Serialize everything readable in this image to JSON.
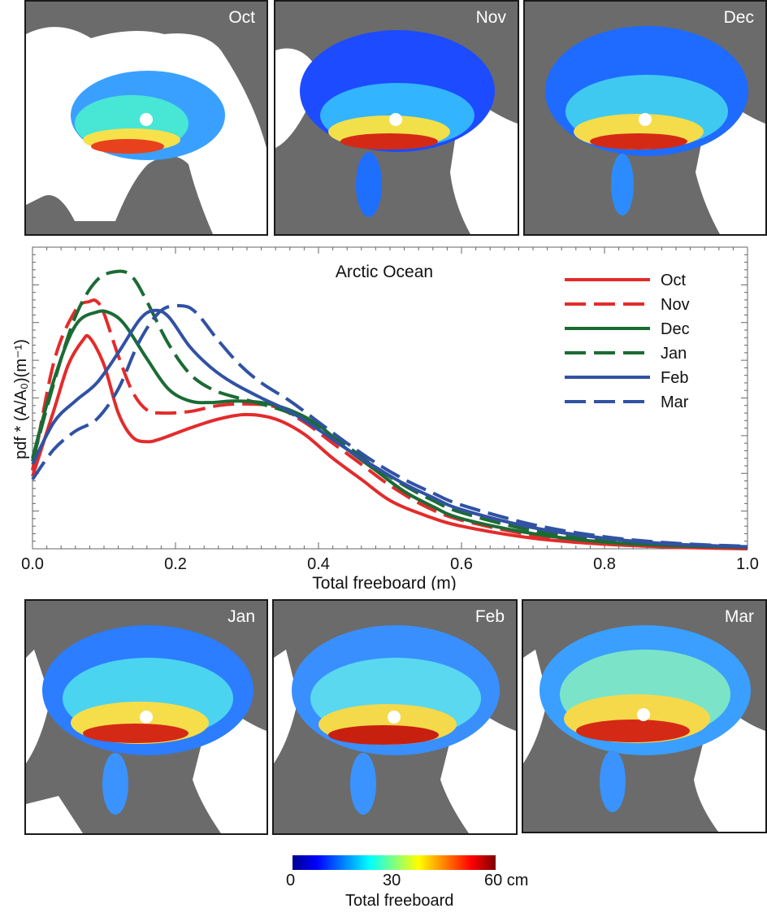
{
  "maps": [
    {
      "month": "Oct"
    },
    {
      "month": "Nov"
    },
    {
      "month": "Dec"
    },
    {
      "month": "Jan"
    },
    {
      "month": "Feb"
    },
    {
      "month": "Mar"
    }
  ],
  "colorbar": {
    "ticks": [
      "0",
      "30",
      "60 cm"
    ],
    "title": "Total freeboard",
    "colors": [
      "#00008f",
      "#0000ff",
      "#0080ff",
      "#00ffff",
      "#80ff80",
      "#ffff00",
      "#ff8000",
      "#ff0000",
      "#800000"
    ]
  },
  "chart_data": {
    "type": "line",
    "title": "Arctic Ocean",
    "xlabel": "Total freeboard (m)",
    "ylabel": "pdf * (A/A₀)(m⁻¹)",
    "xlim": [
      0,
      1.0
    ],
    "ylim": [
      0,
      10
    ],
    "x_ticks": [
      "0.0",
      "0.2",
      "0.4",
      "0.6",
      "0.8",
      "1.0"
    ],
    "legend_position": "top-right",
    "series": [
      {
        "name": "Oct",
        "color": "#e32b2b",
        "dash": "solid",
        "x": [
          0,
          0.03,
          0.05,
          0.07,
          0.08,
          0.1,
          0.12,
          0.14,
          0.16,
          0.18,
          0.22,
          0.26,
          0.3,
          0.34,
          0.38,
          0.42,
          0.46,
          0.5,
          0.55,
          0.6,
          0.7,
          0.8,
          0.9,
          1.0
        ],
        "y": [
          2.4,
          4.6,
          6.1,
          6.9,
          7.0,
          6.1,
          4.5,
          3.7,
          3.55,
          3.65,
          4.0,
          4.3,
          4.45,
          4.3,
          3.8,
          3.0,
          2.3,
          1.6,
          1.1,
          0.75,
          0.35,
          0.15,
          0.05,
          0.0
        ]
      },
      {
        "name": "Nov",
        "color": "#e32b2b",
        "dash": "long",
        "x": [
          0,
          0.03,
          0.06,
          0.08,
          0.09,
          0.1,
          0.12,
          0.14,
          0.16,
          0.18,
          0.22,
          0.26,
          0.3,
          0.34,
          0.38,
          0.42,
          0.46,
          0.5,
          0.55,
          0.6,
          0.7,
          0.8,
          0.9,
          1.0
        ],
        "y": [
          2.6,
          6.2,
          7.9,
          8.2,
          8.2,
          7.8,
          6.4,
          5.2,
          4.6,
          4.5,
          4.55,
          4.75,
          4.8,
          4.7,
          4.2,
          3.5,
          2.8,
          2.1,
          1.4,
          0.95,
          0.45,
          0.2,
          0.08,
          0.02
        ]
      },
      {
        "name": "Dec",
        "color": "#1b6b34",
        "dash": "solid",
        "x": [
          0,
          0.03,
          0.06,
          0.09,
          0.11,
          0.13,
          0.16,
          0.19,
          0.22,
          0.25,
          0.28,
          0.32,
          0.36,
          0.4,
          0.44,
          0.48,
          0.52,
          0.56,
          0.6,
          0.7,
          0.8,
          0.9,
          1.0
        ],
        "y": [
          3.0,
          5.6,
          7.4,
          7.85,
          7.8,
          7.4,
          6.3,
          5.3,
          4.9,
          4.85,
          4.9,
          4.85,
          4.6,
          4.1,
          3.3,
          2.6,
          1.9,
          1.4,
          1.0,
          0.5,
          0.22,
          0.1,
          0.05
        ]
      },
      {
        "name": "Jan",
        "color": "#1b6b34",
        "dash": "long",
        "x": [
          0,
          0.03,
          0.06,
          0.09,
          0.12,
          0.14,
          0.16,
          0.19,
          0.22,
          0.25,
          0.28,
          0.32,
          0.36,
          0.4,
          0.44,
          0.48,
          0.52,
          0.56,
          0.6,
          0.7,
          0.8,
          0.9,
          1.0
        ],
        "y": [
          2.9,
          5.5,
          7.7,
          8.9,
          9.2,
          9.0,
          8.2,
          6.8,
          5.8,
          5.3,
          5.05,
          4.8,
          4.5,
          4.0,
          3.4,
          2.7,
          2.1,
          1.6,
          1.2,
          0.6,
          0.3,
          0.12,
          0.05
        ]
      },
      {
        "name": "Feb",
        "color": "#3152a3",
        "dash": "solid",
        "x": [
          0,
          0.03,
          0.06,
          0.09,
          0.12,
          0.15,
          0.17,
          0.19,
          0.22,
          0.25,
          0.28,
          0.32,
          0.36,
          0.4,
          0.44,
          0.48,
          0.52,
          0.56,
          0.6,
          0.7,
          0.8,
          0.9,
          1.0
        ],
        "y": [
          2.8,
          4.2,
          4.9,
          5.5,
          6.5,
          7.6,
          7.9,
          7.7,
          6.7,
          6.0,
          5.5,
          5.0,
          4.55,
          3.95,
          3.3,
          2.7,
          2.15,
          1.7,
          1.3,
          0.7,
          0.35,
          0.15,
          0.07
        ]
      },
      {
        "name": "Mar",
        "color": "#3152a3",
        "dash": "long",
        "x": [
          0,
          0.03,
          0.06,
          0.09,
          0.12,
          0.15,
          0.18,
          0.21,
          0.23,
          0.26,
          0.29,
          0.32,
          0.36,
          0.4,
          0.44,
          0.48,
          0.52,
          0.56,
          0.6,
          0.7,
          0.8,
          0.9,
          1.0
        ],
        "y": [
          2.3,
          3.3,
          3.9,
          4.3,
          5.3,
          6.9,
          7.9,
          8.05,
          7.8,
          6.9,
          6.1,
          5.5,
          4.9,
          4.2,
          3.5,
          2.85,
          2.3,
          1.85,
          1.45,
          0.8,
          0.4,
          0.18,
          0.08
        ]
      }
    ]
  }
}
